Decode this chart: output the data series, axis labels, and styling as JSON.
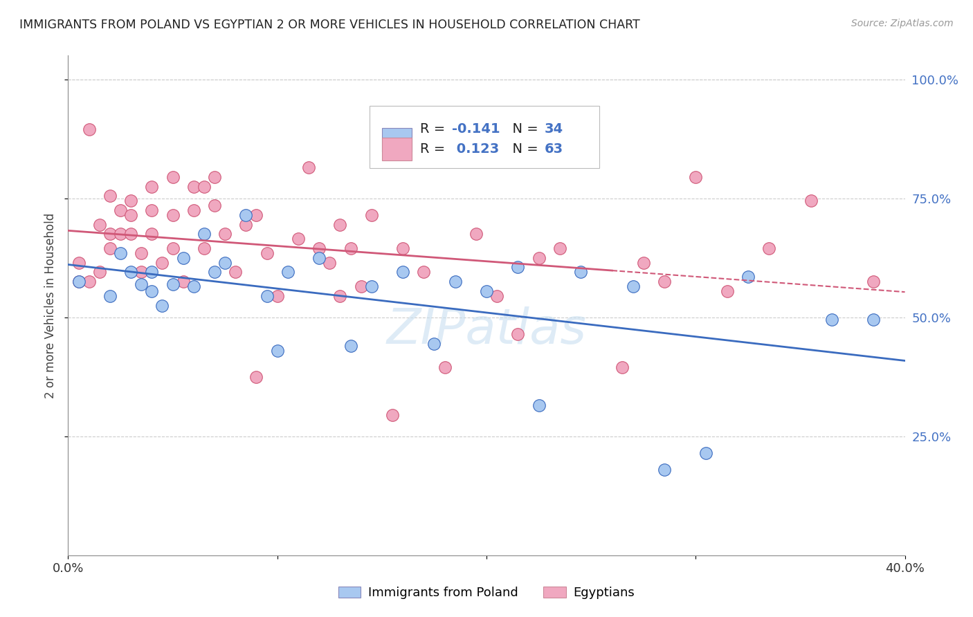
{
  "title": "IMMIGRANTS FROM POLAND VS EGYPTIAN 2 OR MORE VEHICLES IN HOUSEHOLD CORRELATION CHART",
  "source": "Source: ZipAtlas.com",
  "ylabel": "2 or more Vehicles in Household",
  "xmin": 0.0,
  "xmax": 0.4,
  "ymin": 0.0,
  "ymax": 1.05,
  "yticks": [
    0.25,
    0.5,
    0.75,
    1.0
  ],
  "ytick_labels": [
    "25.0%",
    "50.0%",
    "75.0%",
    "100.0%"
  ],
  "xticks": [
    0.0,
    0.1,
    0.2,
    0.3,
    0.4
  ],
  "xtick_labels": [
    "0.0%",
    "",
    "",
    "",
    "40.0%"
  ],
  "color_poland": "#a8c8f0",
  "color_egypt": "#f0a8c0",
  "line_color_poland": "#3a6bbf",
  "line_color_egypt": "#d05878",
  "poland_x": [
    0.005,
    0.02,
    0.025,
    0.03,
    0.035,
    0.04,
    0.04,
    0.045,
    0.05,
    0.055,
    0.06,
    0.065,
    0.07,
    0.075,
    0.085,
    0.095,
    0.1,
    0.105,
    0.12,
    0.135,
    0.145,
    0.16,
    0.175,
    0.185,
    0.2,
    0.215,
    0.225,
    0.245,
    0.27,
    0.285,
    0.305,
    0.325,
    0.365,
    0.385
  ],
  "poland_y": [
    0.575,
    0.545,
    0.635,
    0.595,
    0.57,
    0.595,
    0.555,
    0.525,
    0.57,
    0.625,
    0.565,
    0.675,
    0.595,
    0.615,
    0.715,
    0.545,
    0.43,
    0.595,
    0.625,
    0.44,
    0.565,
    0.595,
    0.445,
    0.575,
    0.555,
    0.605,
    0.315,
    0.595,
    0.565,
    0.18,
    0.215,
    0.585,
    0.495,
    0.495
  ],
  "egypt_x": [
    0.005,
    0.005,
    0.01,
    0.01,
    0.015,
    0.015,
    0.02,
    0.02,
    0.02,
    0.025,
    0.025,
    0.03,
    0.03,
    0.03,
    0.035,
    0.035,
    0.04,
    0.04,
    0.04,
    0.045,
    0.05,
    0.05,
    0.05,
    0.055,
    0.06,
    0.06,
    0.065,
    0.065,
    0.07,
    0.07,
    0.075,
    0.08,
    0.085,
    0.09,
    0.09,
    0.095,
    0.1,
    0.11,
    0.115,
    0.12,
    0.125,
    0.13,
    0.135,
    0.14,
    0.145,
    0.155,
    0.16,
    0.17,
    0.18,
    0.195,
    0.205,
    0.215,
    0.225,
    0.235,
    0.265,
    0.275,
    0.285,
    0.3,
    0.315,
    0.335,
    0.355,
    0.385,
    0.13
  ],
  "egypt_y": [
    0.575,
    0.615,
    0.895,
    0.575,
    0.595,
    0.695,
    0.645,
    0.675,
    0.755,
    0.725,
    0.675,
    0.745,
    0.715,
    0.675,
    0.635,
    0.595,
    0.775,
    0.725,
    0.675,
    0.615,
    0.795,
    0.715,
    0.645,
    0.575,
    0.775,
    0.725,
    0.645,
    0.775,
    0.795,
    0.735,
    0.675,
    0.595,
    0.695,
    0.375,
    0.715,
    0.635,
    0.545,
    0.665,
    0.815,
    0.645,
    0.615,
    0.545,
    0.645,
    0.565,
    0.715,
    0.295,
    0.645,
    0.595,
    0.395,
    0.675,
    0.545,
    0.465,
    0.625,
    0.645,
    0.395,
    0.615,
    0.575,
    0.795,
    0.555,
    0.645,
    0.745,
    0.575,
    0.695
  ]
}
